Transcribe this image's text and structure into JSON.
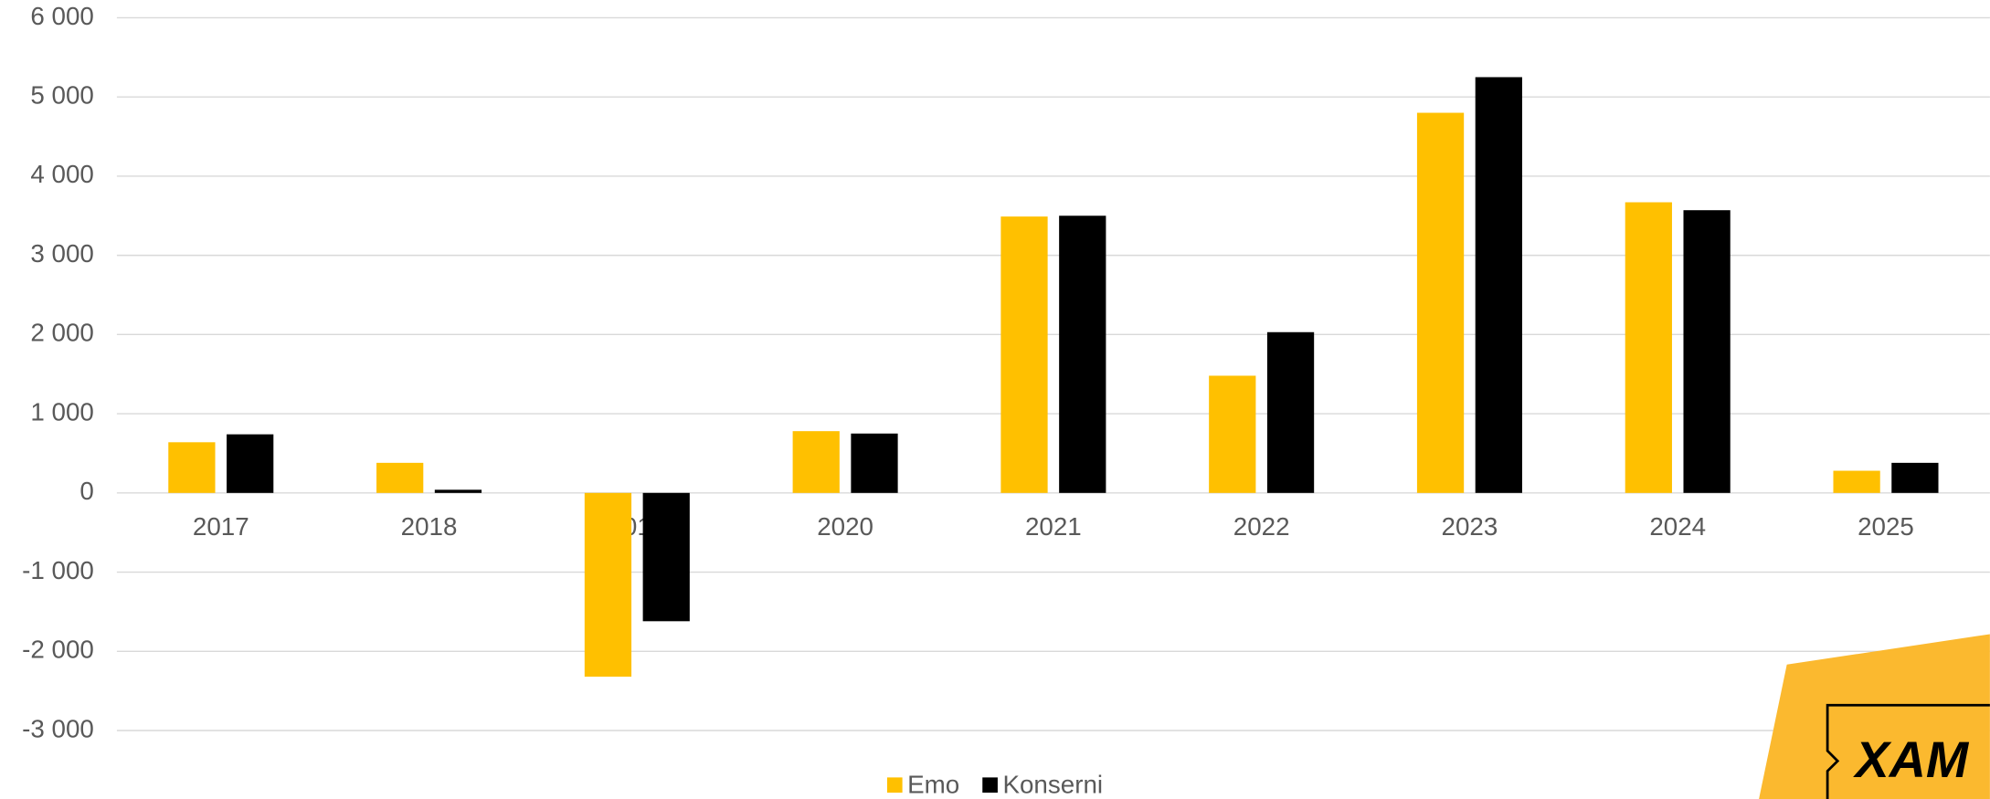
{
  "chart_data": {
    "type": "bar",
    "categories": [
      "2017",
      "2018",
      "2019",
      "2020",
      "2021",
      "2022",
      "2023",
      "2024",
      "2025"
    ],
    "series": [
      {
        "name": "Emo",
        "color": "#ffc000",
        "values": [
          640,
          380,
          -2320,
          780,
          3490,
          1480,
          4800,
          3670,
          280
        ]
      },
      {
        "name": "Konserni",
        "color": "#000000",
        "values": [
          740,
          40,
          -1620,
          750,
          3500,
          2030,
          5250,
          3570,
          380
        ]
      }
    ],
    "ylim": [
      -3000,
      6000
    ],
    "yticks": [
      {
        "value": -3000,
        "label": "-3 000"
      },
      {
        "value": -2000,
        "label": "-2 000"
      },
      {
        "value": -1000,
        "label": "-1 000"
      },
      0,
      {
        "value": 1000,
        "label": "1 000"
      },
      {
        "value": 2000,
        "label": "2 000"
      },
      {
        "value": 3000,
        "label": "3 000"
      },
      {
        "value": 4000,
        "label": "4 000"
      },
      {
        "value": 5000,
        "label": "5 000"
      },
      {
        "value": 6000,
        "label": "6 000"
      }
    ],
    "grid": true,
    "legend": "bottom",
    "logo": "XAM"
  }
}
